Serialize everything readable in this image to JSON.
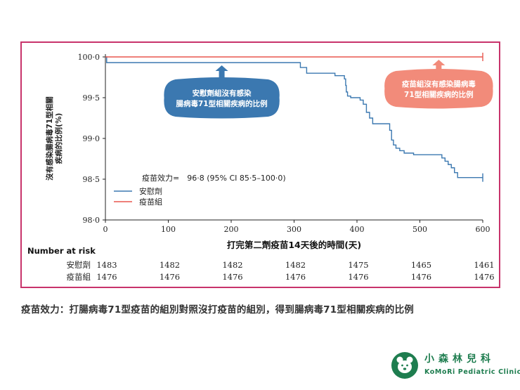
{
  "chart_data": {
    "type": "line",
    "title": "",
    "ylabel": "沒有感染腸病毒71型相關疾病的比例(%)",
    "ylabel_lines": [
      "沒有感染腸病毒71型相關",
      "疾病的比例(%)"
    ],
    "xlabel": "打完第二劑疫苗14天後的時間(天)",
    "xlim": [
      0,
      600
    ],
    "ylim": [
      98.0,
      100.0
    ],
    "x_ticks": [
      0,
      100,
      200,
      300,
      400,
      500,
      600
    ],
    "x_tick_labels": [
      "0",
      "100",
      "200",
      "300",
      "400",
      "500",
      "600"
    ],
    "y_ticks": [
      98.0,
      98.5,
      99.0,
      99.5,
      100.0
    ],
    "y_tick_labels": [
      "98·0",
      "98·5",
      "99·0",
      "99·5",
      "100·0"
    ],
    "efficacy_text": "疫苗效力=　96·8 (95% CI 85·5–100·0)",
    "legend_position": "lower-left",
    "series": [
      {
        "name": "安慰劑",
        "color": "#3b78b0",
        "step": true,
        "points": [
          [
            0,
            100.0
          ],
          [
            2,
            99.93
          ],
          [
            300,
            99.93
          ],
          [
            310,
            99.87
          ],
          [
            320,
            99.8
          ],
          [
            360,
            99.8
          ],
          [
            365,
            99.77
          ],
          [
            380,
            99.73
          ],
          [
            382,
            99.65
          ],
          [
            383,
            99.57
          ],
          [
            385,
            99.52
          ],
          [
            390,
            99.5
          ],
          [
            405,
            99.47
          ],
          [
            410,
            99.42
          ],
          [
            415,
            99.32
          ],
          [
            420,
            99.25
          ],
          [
            425,
            99.18
          ],
          [
            450,
            99.18
          ],
          [
            452,
            99.1
          ],
          [
            455,
            98.98
          ],
          [
            458,
            98.92
          ],
          [
            462,
            98.88
          ],
          [
            468,
            98.85
          ],
          [
            475,
            98.82
          ],
          [
            490,
            98.8
          ],
          [
            530,
            98.8
          ],
          [
            535,
            98.76
          ],
          [
            540,
            98.72
          ],
          [
            545,
            98.68
          ],
          [
            550,
            98.64
          ],
          [
            555,
            98.58
          ],
          [
            560,
            98.52
          ],
          [
            600,
            98.52
          ]
        ],
        "end_marker": true
      },
      {
        "name": "疫苗組",
        "color": "#e8574f",
        "step": true,
        "points": [
          [
            0,
            100.0
          ],
          [
            600,
            100.0
          ]
        ],
        "end_marker": true
      }
    ],
    "annotations": [
      {
        "text_lines": [
          "安慰劑組沒有感染",
          "腸病毒71型相關疾病的比例"
        ],
        "points_to_x": 185,
        "color": "#3b78b0"
      },
      {
        "text_lines": [
          "疫苗組沒有感染腸病毒",
          "71型相關疾病的比例"
        ],
        "points_to_x": 530,
        "color": "#f28b7a"
      }
    ],
    "risk_table": {
      "header": "Number at risk",
      "rows": [
        {
          "label": "安慰劑",
          "values": [
            "1483",
            "1482",
            "1482",
            "1482",
            "1475",
            "1465",
            "1461"
          ]
        },
        {
          "label": "疫苗組",
          "values": [
            "1476",
            "1476",
            "1476",
            "1476",
            "1476",
            "1476",
            "1476"
          ]
        }
      ]
    }
  },
  "caption": "疫苗效力：打腸病毒71型疫苗的組別對照沒打疫苗的組別，得到腸病毒71型相關疾病的比例",
  "logo": {
    "name": "小森林兒科",
    "subtitle": "KoMoRi Pediatric Clinic",
    "color": "#1e7d4f"
  }
}
